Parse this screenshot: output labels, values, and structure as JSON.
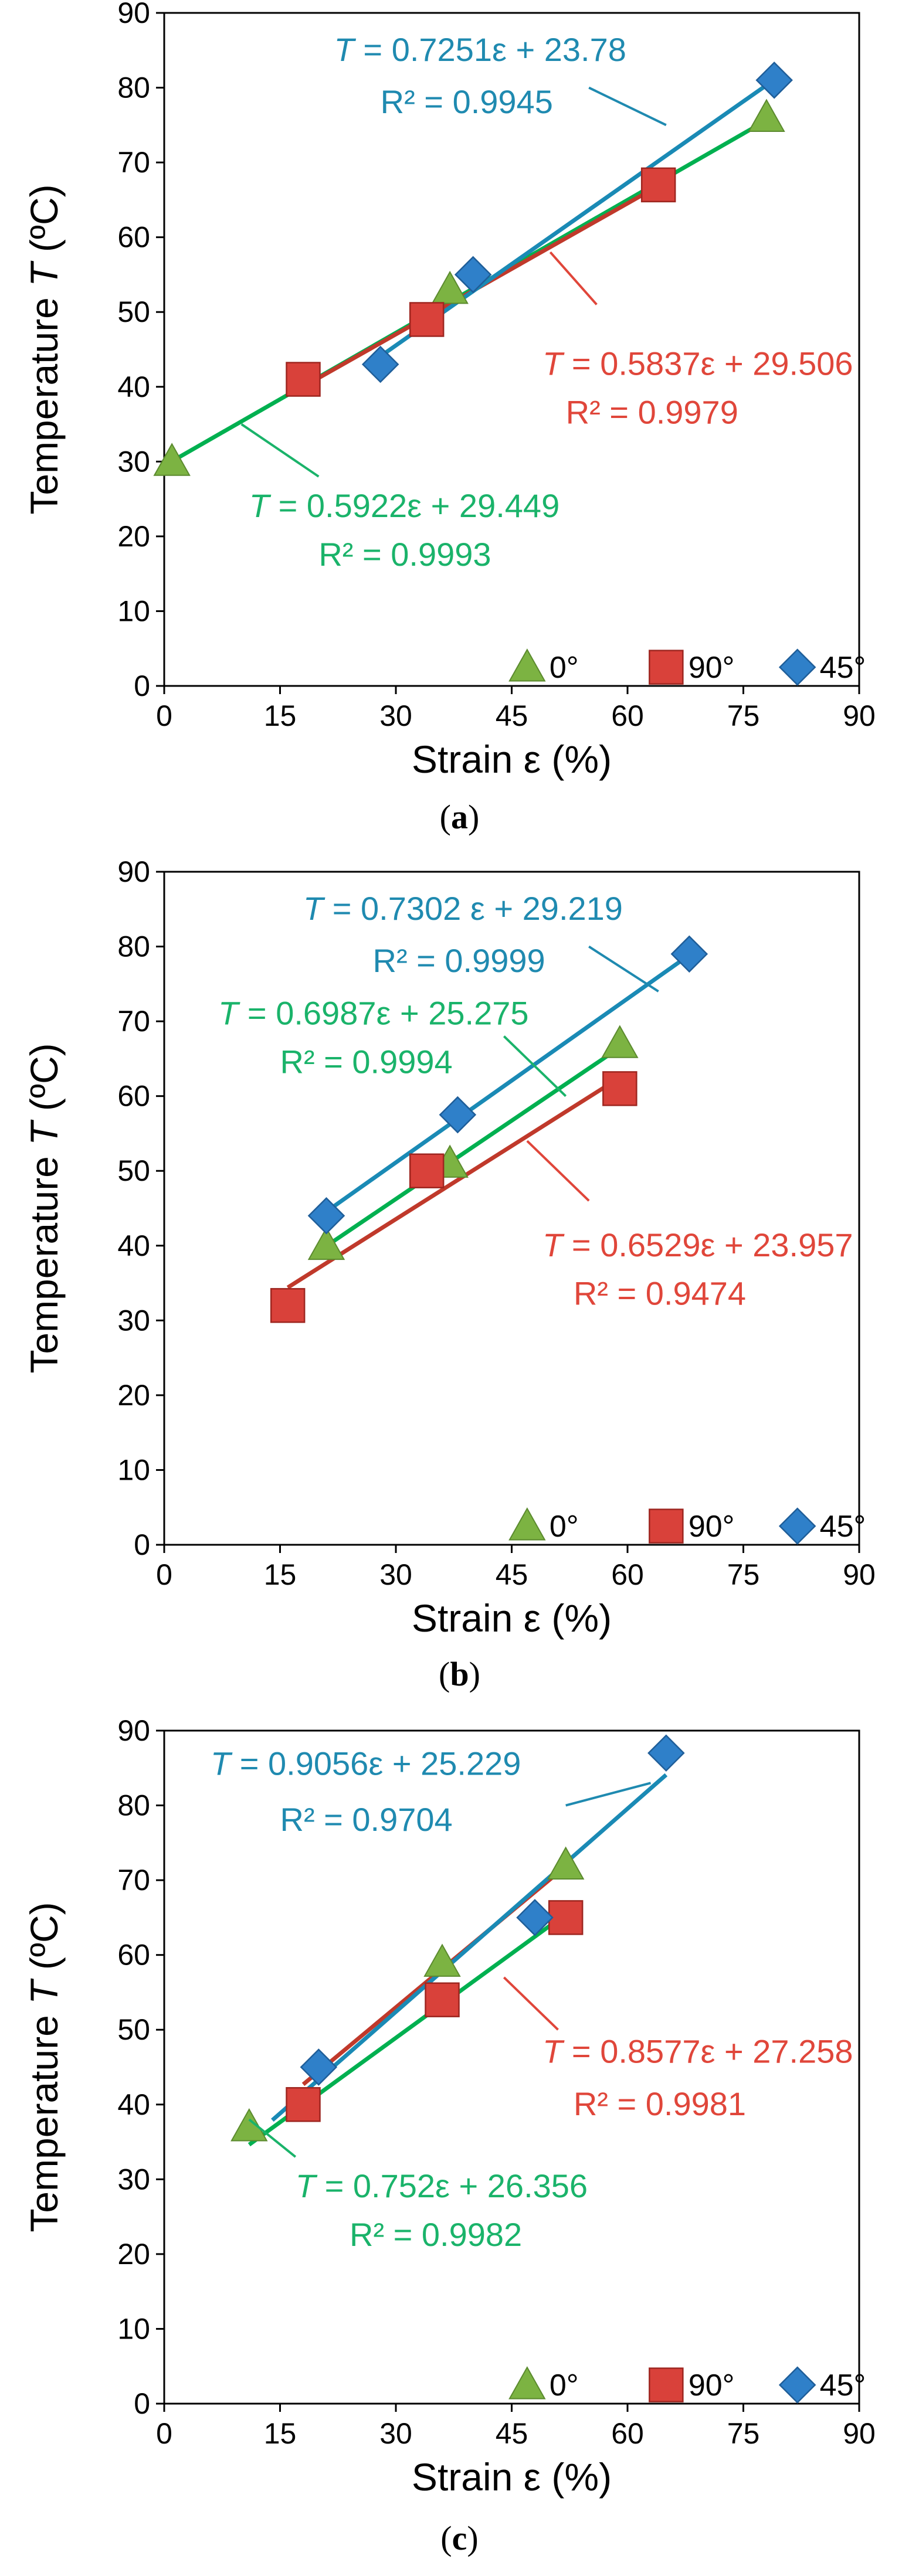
{
  "charts": [
    {
      "panel": "a",
      "label_open": "(",
      "label_letter": "a",
      "label_close": ")",
      "chart_data": {
        "type": "scatter",
        "ylabel_text": "Temperature ",
        "ylabel_var": "T",
        "ylabel_unit": " (ºC)",
        "xlabel": "Strain ε  (%)",
        "xlim": [
          0,
          90
        ],
        "ylim": [
          0,
          90
        ],
        "xticks": [
          0,
          15,
          30,
          45,
          60,
          75,
          90
        ],
        "yticks": [
          0,
          10,
          20,
          30,
          40,
          50,
          60,
          70,
          80,
          90
        ],
        "legend": [
          "0°",
          "90°",
          "45°"
        ],
        "series": [
          {
            "name": "0°",
            "marker": "triangle",
            "color": "#7cb342",
            "line_color": "#00b050",
            "x": [
              1,
              37,
              78
            ],
            "y": [
              30,
              53,
              76
            ],
            "fit": {
              "slope": 0.5922,
              "intercept": 29.449,
              "x_range": [
                0.5,
                79
              ]
            }
          },
          {
            "name": "90°",
            "marker": "square",
            "color": "#d9413a",
            "line_color": "#c0392b",
            "x": [
              18,
              34,
              64
            ],
            "y": [
              41,
              49,
              67
            ],
            "fit": {
              "slope": 0.5837,
              "intercept": 29.506,
              "x_range": [
                18,
                64
              ]
            }
          },
          {
            "name": "45°",
            "marker": "diamond",
            "color": "#2f80c9",
            "line_color": "#1a8ab5",
            "x": [
              28,
              40,
              79
            ],
            "y": [
              43,
              55,
              81
            ],
            "fit": {
              "slope": 0.7251,
              "intercept": 23.78,
              "x_range": [
                28,
                79
              ]
            }
          }
        ],
        "annotations": [
          {
            "color": "#1f8ab0",
            "T": "T",
            "eq": " = 0.7251ε + 23.78",
            "r2": "R² = 0.9945",
            "ex": 22,
            "ey": 85,
            "rx": 28,
            "ry": 78,
            "from": [
              55,
              80
            ],
            "to": [
              65,
              75
            ]
          },
          {
            "color": "#e0463a",
            "T": "T",
            "eq": " = 0.5837ε + 29.506",
            "r2": "R² = 0.9979",
            "ex": 49,
            "ey": 43,
            "rx": 52,
            "ry": 36.5,
            "from": [
              56,
              51
            ],
            "to": [
              50,
              58
            ]
          },
          {
            "color": "#1ab36a",
            "T": "T",
            "eq": " = 0.5922ε + 29.449",
            "r2": "R² = 0.9993",
            "ex": 11,
            "ey": 24,
            "rx": 20,
            "ry": 17.5,
            "from": [
              20,
              28
            ],
            "to": [
              10,
              35
            ]
          }
        ]
      }
    },
    {
      "panel": "b",
      "label_open": "(",
      "label_letter": "b",
      "label_close": ")",
      "chart_data": {
        "type": "scatter",
        "ylabel_text": "Temperature ",
        "ylabel_var": "T",
        "ylabel_unit": " (ºC)",
        "xlabel": "Strain ε  (%)",
        "xlim": [
          0,
          90
        ],
        "ylim": [
          0,
          90
        ],
        "xticks": [
          0,
          15,
          30,
          45,
          60,
          75,
          90
        ],
        "yticks": [
          0,
          10,
          20,
          30,
          40,
          50,
          60,
          70,
          80,
          90
        ],
        "legend": [
          "0°",
          "90°",
          "45°"
        ],
        "series": [
          {
            "name": "0°",
            "marker": "triangle",
            "color": "#7cb342",
            "line_color": "#00b050",
            "x": [
              21,
              37,
              59
            ],
            "y": [
              40,
              51,
              67
            ],
            "fit": {
              "slope": 0.6987,
              "intercept": 25.275,
              "x_range": [
                20,
                59
              ]
            }
          },
          {
            "name": "90°",
            "marker": "square",
            "color": "#d9413a",
            "line_color": "#c0392b",
            "x": [
              16,
              34,
              59
            ],
            "y": [
              32,
              50,
              61
            ],
            "fit": {
              "slope": 0.6529,
              "intercept": 23.957,
              "x_range": [
                16,
                59
              ]
            }
          },
          {
            "name": "45°",
            "marker": "diamond",
            "color": "#2f80c9",
            "line_color": "#1a8ab5",
            "x": [
              21,
              38,
              68
            ],
            "y": [
              44,
              57.5,
              79
            ],
            "fit": {
              "slope": 0.7302,
              "intercept": 29.219,
              "x_range": [
                20,
                68
              ]
            }
          }
        ],
        "annotations": [
          {
            "color": "#1f8ab0",
            "T": "T",
            "eq": " = 0.7302 ε + 29.219",
            "r2": "R² = 0.9999",
            "ex": 18,
            "ey": 85,
            "rx": 27,
            "ry": 78,
            "from": [
              55,
              80
            ],
            "to": [
              64,
              74
            ]
          },
          {
            "color": "#1ab36a",
            "T": "T",
            "eq": " = 0.6987ε + 25.275",
            "r2": "R² = 0.9994",
            "ex": 7,
            "ey": 71,
            "rx": 15,
            "ry": 64.5,
            "from": [
              44,
              68
            ],
            "to": [
              52,
              60
            ]
          },
          {
            "color": "#e0463a",
            "T": "T",
            "eq": " = 0.6529ε + 23.957",
            "r2": "R² = 0.9474",
            "ex": 49,
            "ey": 40,
            "rx": 53,
            "ry": 33.5,
            "from": [
              55,
              46
            ],
            "to": [
              47,
              54
            ]
          }
        ]
      }
    },
    {
      "panel": "c",
      "label_open": "(",
      "label_letter": "c",
      "label_close": ")",
      "chart_data": {
        "type": "scatter",
        "ylabel_text": "Temperature ",
        "ylabel_var": "T",
        "ylabel_unit": " (ºC)",
        "xlabel": "Strain ε  (%)",
        "xlim": [
          0,
          90
        ],
        "ylim": [
          0,
          90
        ],
        "xticks": [
          0,
          15,
          30,
          45,
          60,
          75,
          90
        ],
        "yticks": [
          0,
          10,
          20,
          30,
          40,
          50,
          60,
          70,
          80,
          90
        ],
        "legend": [
          "0°",
          "90°",
          "45°"
        ],
        "series": [
          {
            "name": "0°",
            "marker": "triangle",
            "color": "#7cb342",
            "line_color": "#00b050",
            "x": [
              11,
              36,
              52
            ],
            "y": [
              37,
              59,
              72
            ],
            "fit": {
              "slope": 0.752,
              "intercept": 26.356,
              "x_range": [
                11,
                52
              ]
            }
          },
          {
            "name": "90°",
            "marker": "square",
            "color": "#d9413a",
            "line_color": "#c0392b",
            "x": [
              18,
              36,
              52
            ],
            "y": [
              40,
              54,
              65
            ],
            "fit": {
              "slope": 0.8577,
              "intercept": 27.258,
              "x_range": [
                18,
                52
              ]
            }
          },
          {
            "name": "45°",
            "marker": "diamond",
            "color": "#2f80c9",
            "line_color": "#1a8ab5",
            "x": [
              20,
              48,
              65
            ],
            "y": [
              45,
              65,
              87
            ],
            "fit": {
              "slope": 0.9056,
              "intercept": 25.229,
              "x_range": [
                14,
                65
              ]
            }
          }
        ],
        "annotations": [
          {
            "color": "#1f8ab0",
            "T": "T",
            "eq": " = 0.9056ε + 25.229",
            "r2": "R² = 0.9704",
            "ex": 6,
            "ey": 85.5,
            "rx": 15,
            "ry": 78,
            "from": [
              52,
              80
            ],
            "to": [
              63,
              83
            ]
          },
          {
            "color": "#e0463a",
            "T": "T",
            "eq": " = 0.8577ε + 27.258",
            "r2": "R² = 0.9981",
            "ex": 49,
            "ey": 47,
            "rx": 53,
            "ry": 40,
            "from": [
              51,
              50
            ],
            "to": [
              44,
              57
            ]
          },
          {
            "color": "#1ab36a",
            "T": "T",
            "eq": " = 0.752ε + 26.356",
            "r2": "R² = 0.9982",
            "ex": 17,
            "ey": 29,
            "rx": 24,
            "ry": 22.5,
            "from": [
              17,
              33
            ],
            "to": [
              11,
              38
            ]
          }
        ]
      }
    }
  ]
}
